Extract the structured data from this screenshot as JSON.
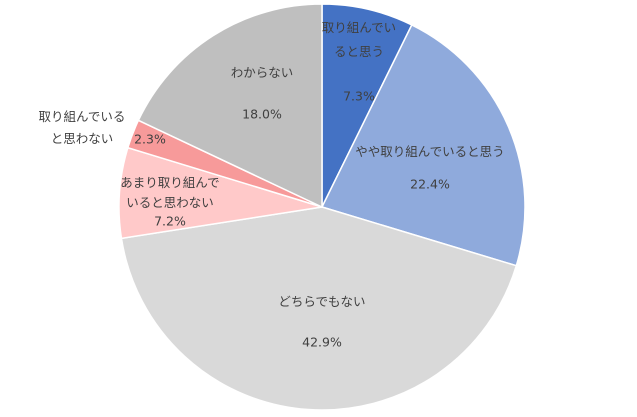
{
  "chart_data": {
    "type": "pie",
    "categories": [
      "取り組んでいると思う",
      "やや取り組んでいると思う",
      "どちらでもない",
      "あまり取り組んでいると思わない",
      "取り組んでいると思わない",
      "わからない"
    ],
    "values": [
      7.3,
      22.4,
      42.9,
      7.2,
      2.3,
      18.0
    ],
    "value_labels": [
      "7.3%",
      "22.4%",
      "42.9%",
      "7.2%",
      "2.3%",
      "18.0%"
    ],
    "colors": [
      "#4472c4",
      "#8faadc",
      "#d9d9d9",
      "#ffc9c9",
      "#f79a9a",
      "#bfbfbf"
    ]
  }
}
